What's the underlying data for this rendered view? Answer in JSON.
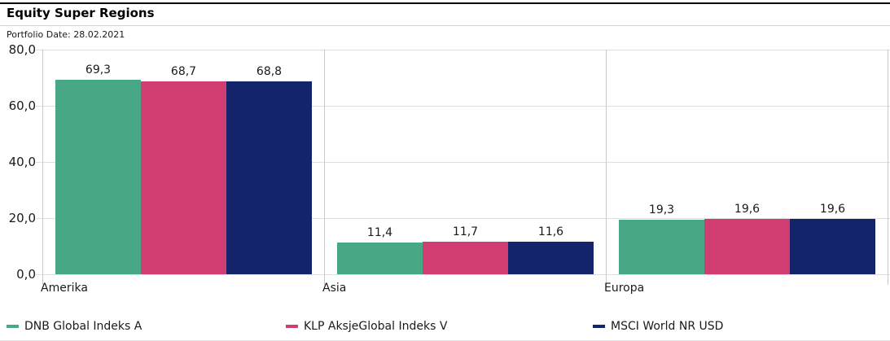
{
  "header": {
    "title": "Equity Super Regions",
    "portfolio_date": "Portfolio Date: 28.02.2021"
  },
  "colors": {
    "series": [
      "#48A885",
      "#D13D73",
      "#13246B"
    ],
    "gridline": "#DEDEDE",
    "separator": "#C9C9C9",
    "top_rule": "#000000",
    "text": "#1A1A1A"
  },
  "chart_data": {
    "type": "bar",
    "title": "Equity Super Regions",
    "subtitle": "Portfolio Date: 28.02.2021",
    "categories": [
      "Amerika",
      "Asia",
      "Europa"
    ],
    "series": [
      {
        "name": "DNB Global Indeks A",
        "color": "#48A885",
        "values": [
          69.3,
          11.4,
          19.3
        ]
      },
      {
        "name": "KLP AksjeGlobal Indeks V",
        "color": "#D13D73",
        "values": [
          68.7,
          11.7,
          19.6
        ]
      },
      {
        "name": "MSCI World NR USD",
        "color": "#13246B",
        "values": [
          68.8,
          11.6,
          19.6
        ]
      }
    ],
    "ylim": [
      0,
      80
    ],
    "ytick_step": 20,
    "ytick_labels": [
      "0,0",
      "20,0",
      "40,0",
      "60,0",
      "80,0"
    ],
    "decimal_separator": ",",
    "value_labels": true,
    "grid": true,
    "legend_position": "bottom",
    "xlabel": "",
    "ylabel": ""
  }
}
